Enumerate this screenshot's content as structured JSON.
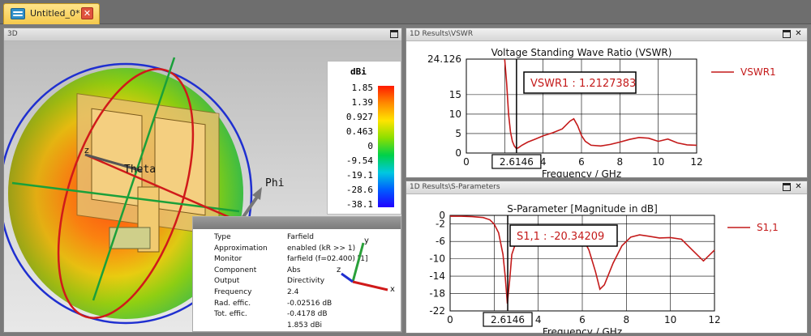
{
  "tab": {
    "title": "Untitled_0*",
    "close": "✕"
  },
  "panel_3d": {
    "title": "3D",
    "colorbar": {
      "unit": "dBi",
      "ticks": [
        "1.85",
        "1.39",
        "0.927",
        "0.463",
        "0",
        "-9.54",
        "-19.1",
        "-28.6",
        "-38.1"
      ]
    },
    "labels": {
      "theta": "Theta",
      "phi": "Phi",
      "x": "x",
      "z": "z",
      "y": "y"
    },
    "info": {
      "rows": [
        {
          "label": "Type",
          "value": "Farfield"
        },
        {
          "label": "Approximation",
          "value": "enabled (kR >> 1)"
        },
        {
          "label": "Monitor",
          "value": "farfield (f=02.400) [1]"
        },
        {
          "label": "Component",
          "value": "Abs"
        },
        {
          "label": "Output",
          "value": "Directivity"
        },
        {
          "label": "Frequency",
          "value": "2.4"
        },
        {
          "label": "Rad. effic.",
          "value": "-0.02516 dB"
        },
        {
          "label": "Tot. effic.",
          "value": "-0.4178 dB"
        },
        {
          "label": "",
          "value": "1.853 dBi"
        }
      ]
    }
  },
  "panel_vswr": {
    "title": "1D Results\\VSWR"
  },
  "panel_sp": {
    "title": "1D Results\\S-Parameters"
  },
  "chart_data": [
    {
      "type": "line",
      "title": "Voltage Standing Wave Ratio (VSWR)",
      "xlabel": "Frequency / GHz",
      "ylabel": "",
      "xlim": [
        0,
        12
      ],
      "ylim": [
        0,
        24.126
      ],
      "x_ticks": [
        "0",
        "2",
        "4",
        "6",
        "8",
        "10",
        "12"
      ],
      "y_ticks": [
        "24.126",
        "15",
        "10",
        "5",
        "0"
      ],
      "y_tick_values": [
        24.126,
        15,
        10,
        5,
        0
      ],
      "grid": true,
      "legend": "right",
      "marker": {
        "x": 2.6146,
        "x_label": "2.6146",
        "annotation": "VSWR1 : 1.2127383"
      },
      "series": [
        {
          "name": "VSWR1",
          "x": [
            2.0,
            2.1,
            2.2,
            2.3,
            2.4,
            2.5,
            2.6,
            2.7,
            2.9,
            3.2,
            3.6,
            4.0,
            4.5,
            5.0,
            5.4,
            5.6,
            5.8,
            6.0,
            6.2,
            6.5,
            7.0,
            7.5,
            8.0,
            8.5,
            9.0,
            9.5,
            10.0,
            10.5,
            11.0,
            11.5,
            12.0
          ],
          "values": [
            24.126,
            18.0,
            10.0,
            5.5,
            3.0,
            1.8,
            1.2127,
            1.3,
            2.0,
            2.8,
            3.6,
            4.4,
            5.2,
            6.2,
            8.2,
            8.8,
            7.0,
            4.5,
            3.0,
            2.0,
            1.8,
            2.2,
            2.8,
            3.5,
            4.0,
            3.8,
            3.0,
            3.6,
            2.6,
            2.1,
            2.0
          ]
        }
      ]
    },
    {
      "type": "line",
      "title": "S-Parameter [Magnitude in dB]",
      "xlabel": "Frequency / GHz",
      "ylabel": "",
      "xlim": [
        0,
        12
      ],
      "ylim": [
        -22,
        0
      ],
      "x_ticks": [
        "0",
        "2",
        "4",
        "6",
        "8",
        "10",
        "12"
      ],
      "y_ticks": [
        "0",
        "-2",
        "-6",
        "-10",
        "-14",
        "-18",
        "-22"
      ],
      "y_tick_values": [
        0,
        -2,
        -6,
        -10,
        -14,
        -18,
        -22
      ],
      "grid": true,
      "legend": "right",
      "marker": {
        "x": 2.6146,
        "x_label": "2.6146",
        "annotation": "S1,1 : -20.34209"
      },
      "series": [
        {
          "name": "S1,1",
          "x": [
            0,
            0.5,
            1.0,
            1.5,
            1.8,
            2.0,
            2.2,
            2.4,
            2.5,
            2.6,
            2.7,
            2.8,
            3.0,
            3.5,
            4.0,
            4.5,
            5.0,
            5.5,
            6.0,
            6.3,
            6.6,
            6.8,
            7.0,
            7.4,
            7.8,
            8.2,
            8.6,
            9.0,
            9.5,
            10.0,
            10.5,
            11.0,
            11.5,
            12.0
          ],
          "values": [
            -0.2,
            -0.2,
            -0.3,
            -0.5,
            -1.0,
            -2.0,
            -4.0,
            -9.0,
            -14.0,
            -20.3,
            -15.0,
            -9.0,
            -6.0,
            -4.5,
            -3.8,
            -3.3,
            -3.0,
            -3.5,
            -5.0,
            -8.0,
            -13.0,
            -17.0,
            -16.0,
            -11.0,
            -7.0,
            -5.0,
            -4.5,
            -4.8,
            -5.2,
            -5.1,
            -5.5,
            -8.0,
            -10.5,
            -8.0
          ]
        }
      ]
    }
  ]
}
